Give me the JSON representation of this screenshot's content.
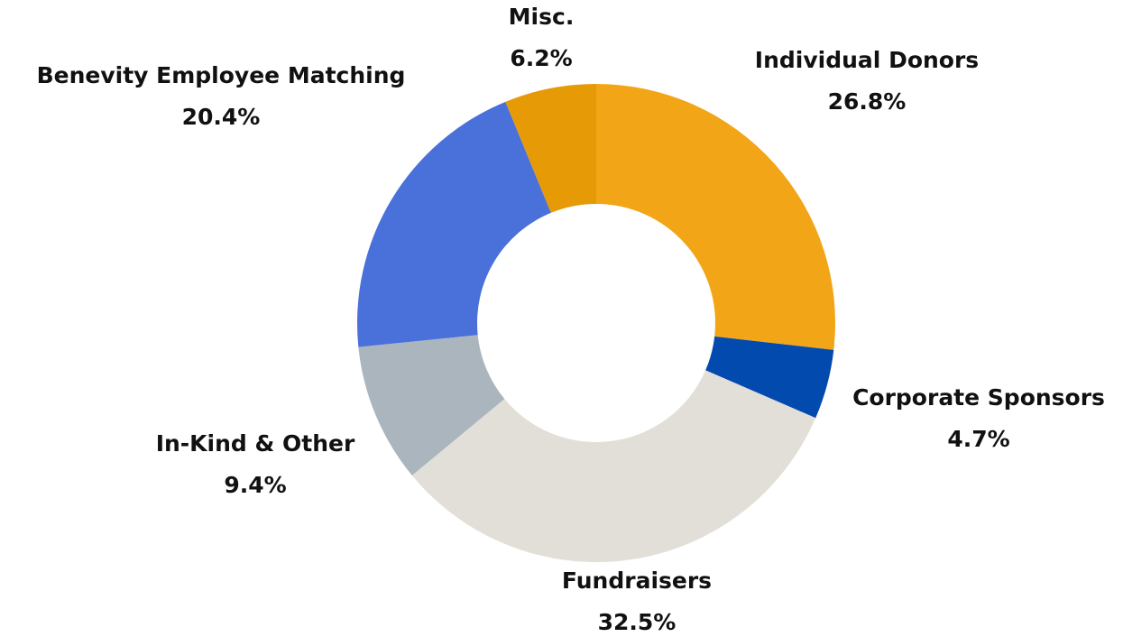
{
  "chart_data": {
    "type": "donut",
    "categories": [
      "Individual Donors",
      "Corporate Sponsors",
      "Fundraisers",
      "In-Kind & Other",
      "Benevity Employee Matching",
      "Misc."
    ],
    "values": [
      26.8,
      4.7,
      32.5,
      9.4,
      20.4,
      6.2
    ],
    "value_labels": [
      "26.8%",
      "4.7%",
      "32.5%",
      "9.4%",
      "20.4%",
      "6.2%"
    ],
    "colors": [
      "#f2a516",
      "#034aae",
      "#e1dfd7",
      "#aab5be",
      "#4a70d9",
      "#e59a06"
    ]
  }
}
